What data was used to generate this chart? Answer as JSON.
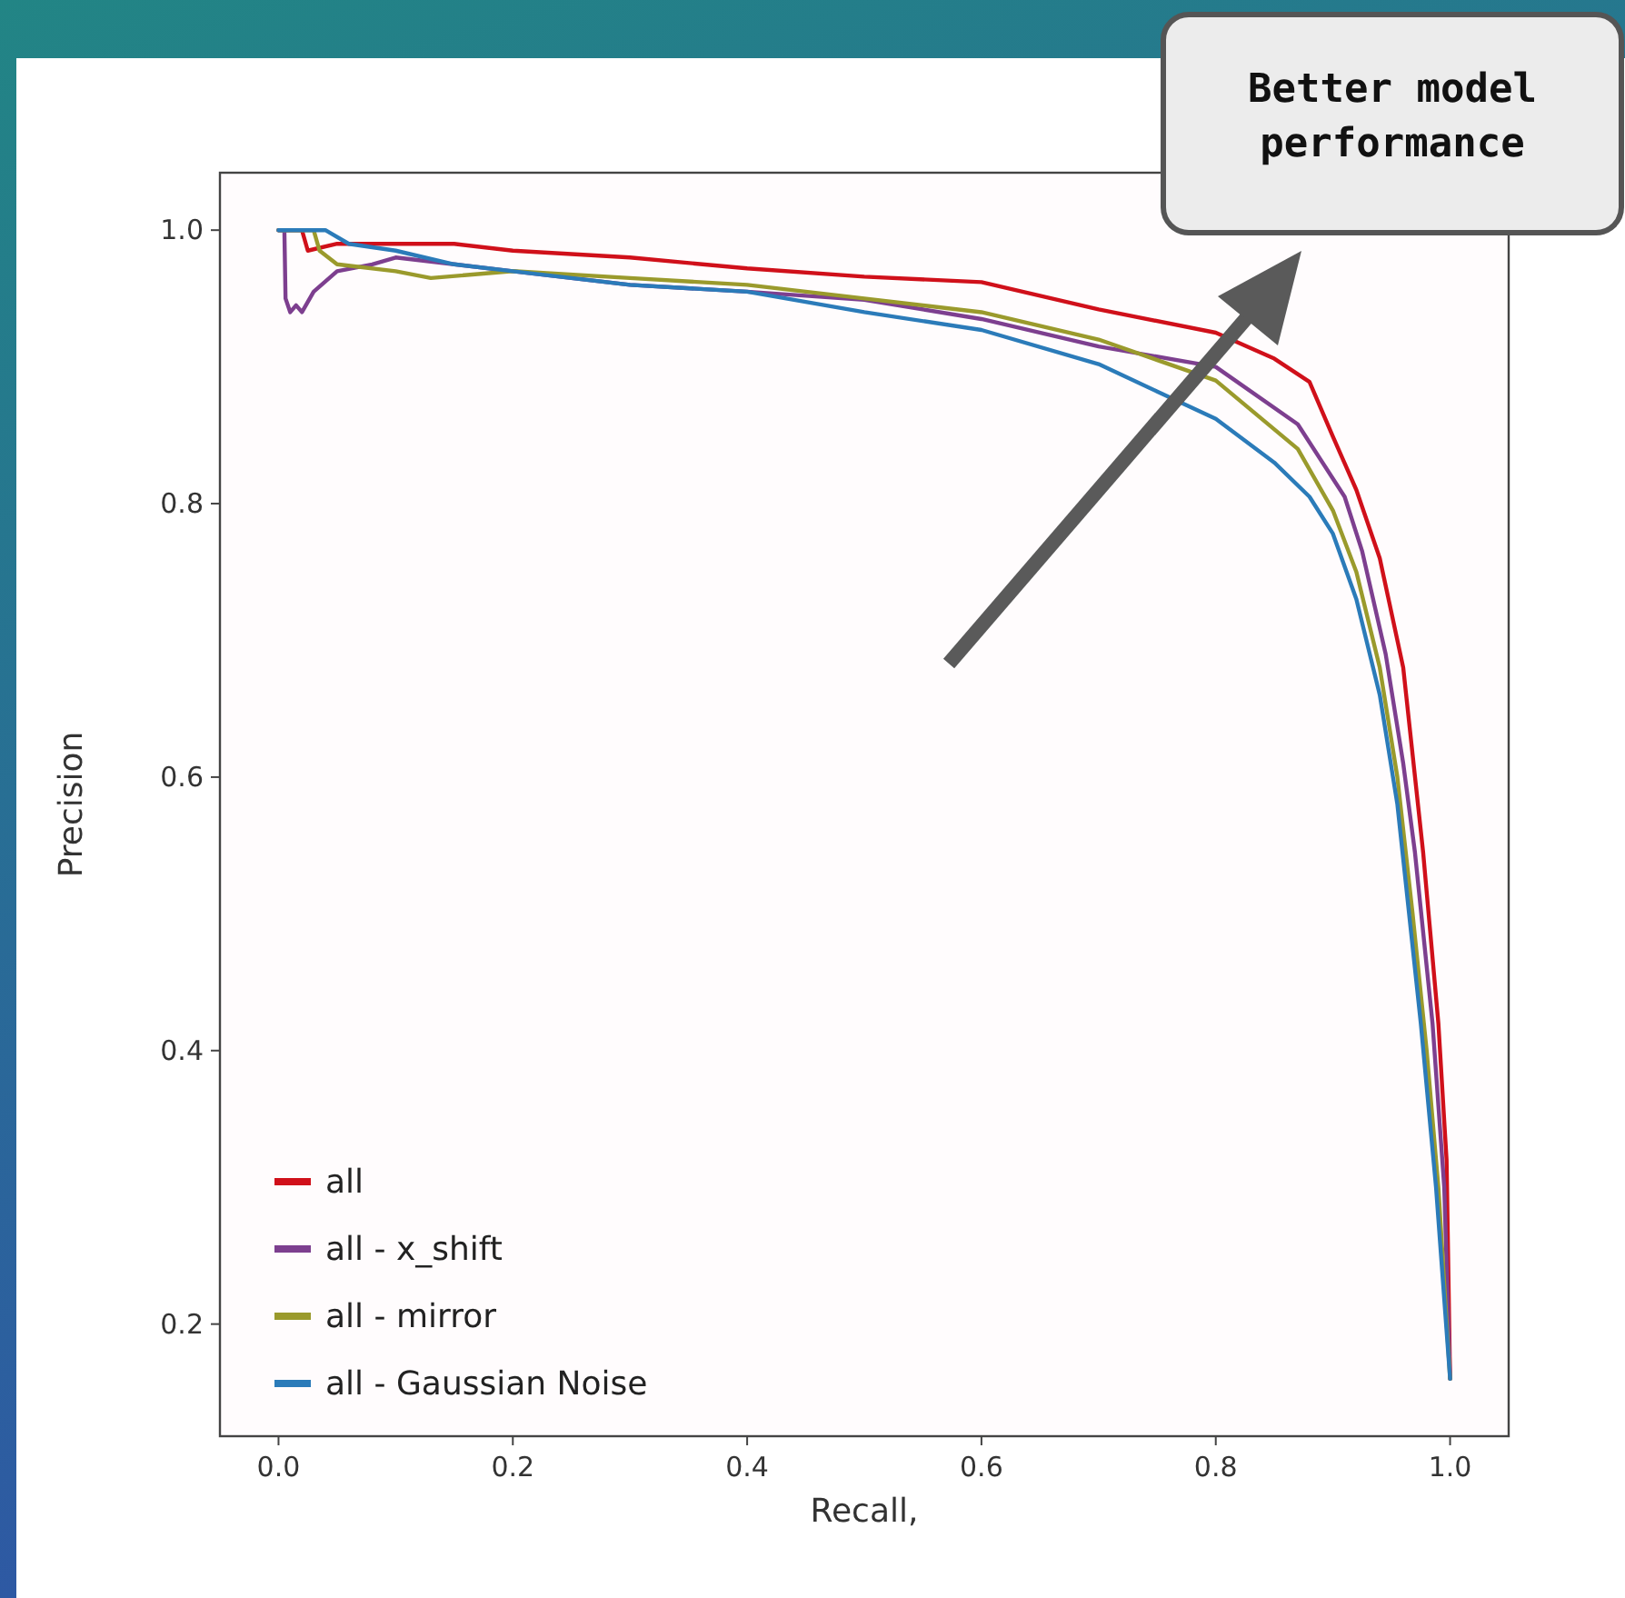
{
  "chart_data": {
    "type": "line",
    "xlabel": "Recall,",
    "ylabel": "Precision",
    "xlim": [
      -0.05,
      1.05
    ],
    "ylim": [
      0.118,
      1.042
    ],
    "xticks": [
      {
        "value": 0,
        "label": "0.0"
      },
      0.2,
      0.4,
      0.6,
      0.8,
      {
        "value": 1,
        "label": "1.0"
      }
    ],
    "yticks": [
      0.2,
      0.4,
      0.6,
      0.8,
      {
        "value": 1,
        "label": "1.0"
      }
    ],
    "grid": false,
    "legend": "bottom left",
    "marker": "none",
    "line_style": "solid",
    "annotations": [
      "Better model performance"
    ],
    "series": [
      {
        "name": "all",
        "color": "#d0101a",
        "x": [
          0,
          0.02,
          0.025,
          0.05,
          0.1,
          0.15,
          0.2,
          0.3,
          0.4,
          0.5,
          0.6,
          0.7,
          0.8,
          0.85,
          0.88,
          0.9,
          0.92,
          0.94,
          0.96,
          0.977,
          0.99,
          0.997,
          1.0
        ],
        "values": [
          1.0,
          1.0,
          0.985,
          0.99,
          0.99,
          0.99,
          0.985,
          0.98,
          0.972,
          0.966,
          0.962,
          0.942,
          0.925,
          0.906,
          0.889,
          0.849,
          0.81,
          0.76,
          0.68,
          0.545,
          0.42,
          0.32,
          0.16
        ]
      },
      {
        "name": "all - x_shift",
        "color": "#7d3f8f",
        "x": [
          0,
          0.005,
          0.006,
          0.01,
          0.015,
          0.02,
          0.03,
          0.05,
          0.08,
          0.1,
          0.15,
          0.2,
          0.3,
          0.4,
          0.5,
          0.6,
          0.7,
          0.8,
          0.87,
          0.91,
          0.925,
          0.945,
          0.96,
          0.97,
          0.985,
          0.995,
          1.0
        ],
        "values": [
          1.0,
          1.0,
          0.95,
          0.94,
          0.945,
          0.94,
          0.955,
          0.97,
          0.975,
          0.98,
          0.975,
          0.97,
          0.96,
          0.955,
          0.949,
          0.935,
          0.915,
          0.9,
          0.858,
          0.805,
          0.765,
          0.69,
          0.61,
          0.545,
          0.42,
          0.3,
          0.16
        ]
      },
      {
        "name": "all - mirror",
        "color": "#9a9a2c",
        "x": [
          0,
          0.03,
          0.035,
          0.05,
          0.1,
          0.13,
          0.2,
          0.3,
          0.4,
          0.5,
          0.6,
          0.7,
          0.75,
          0.8,
          0.87,
          0.9,
          0.92,
          0.94,
          0.955,
          0.968,
          0.98,
          0.99,
          1.0
        ],
        "values": [
          1.0,
          1.0,
          0.985,
          0.975,
          0.97,
          0.965,
          0.97,
          0.965,
          0.96,
          0.95,
          0.94,
          0.92,
          0.905,
          0.89,
          0.84,
          0.795,
          0.75,
          0.68,
          0.6,
          0.5,
          0.4,
          0.3,
          0.16
        ]
      },
      {
        "name": "all - Gaussian Noise",
        "color": "#2b7bb9",
        "x": [
          0,
          0.04,
          0.06,
          0.1,
          0.15,
          0.2,
          0.3,
          0.4,
          0.5,
          0.6,
          0.7,
          0.75,
          0.8,
          0.85,
          0.88,
          0.9,
          0.92,
          0.94,
          0.955,
          0.965,
          0.975,
          0.988,
          1.0
        ],
        "values": [
          1.0,
          1.0,
          0.99,
          0.985,
          0.975,
          0.97,
          0.96,
          0.955,
          0.94,
          0.927,
          0.902,
          0.882,
          0.862,
          0.83,
          0.805,
          0.778,
          0.73,
          0.66,
          0.58,
          0.5,
          0.42,
          0.3,
          0.16
        ]
      }
    ]
  }
}
